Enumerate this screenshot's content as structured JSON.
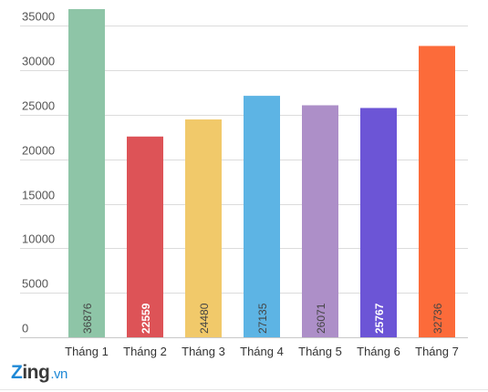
{
  "chart_data": {
    "type": "bar",
    "categories": [
      "Tháng 1",
      "Tháng 2",
      "Tháng 3",
      "Tháng 4",
      "Tháng 5",
      "Tháng 6",
      "Tháng 7"
    ],
    "values": [
      36876,
      22559,
      24480,
      27135,
      26071,
      25767,
      32736
    ],
    "colors": [
      "#8ec5a7",
      "#dd5357",
      "#f1c96a",
      "#5db4e4",
      "#ad8fc8",
      "#6c55d6",
      "#fc6b3a"
    ],
    "data_label_colors": [
      "#444444",
      "#ffffff",
      "#444444",
      "#444444",
      "#444444",
      "#ffffff",
      "#444444"
    ],
    "y_ticks": [
      0,
      5000,
      10000,
      15000,
      20000,
      25000,
      30000,
      35000
    ],
    "ylim": [
      0,
      36876
    ],
    "grid": true,
    "title": "",
    "xlabel": "",
    "ylabel": ""
  },
  "branding": {
    "logo_z": "Z",
    "logo_ing": "ing",
    "logo_vn": ".vn"
  }
}
